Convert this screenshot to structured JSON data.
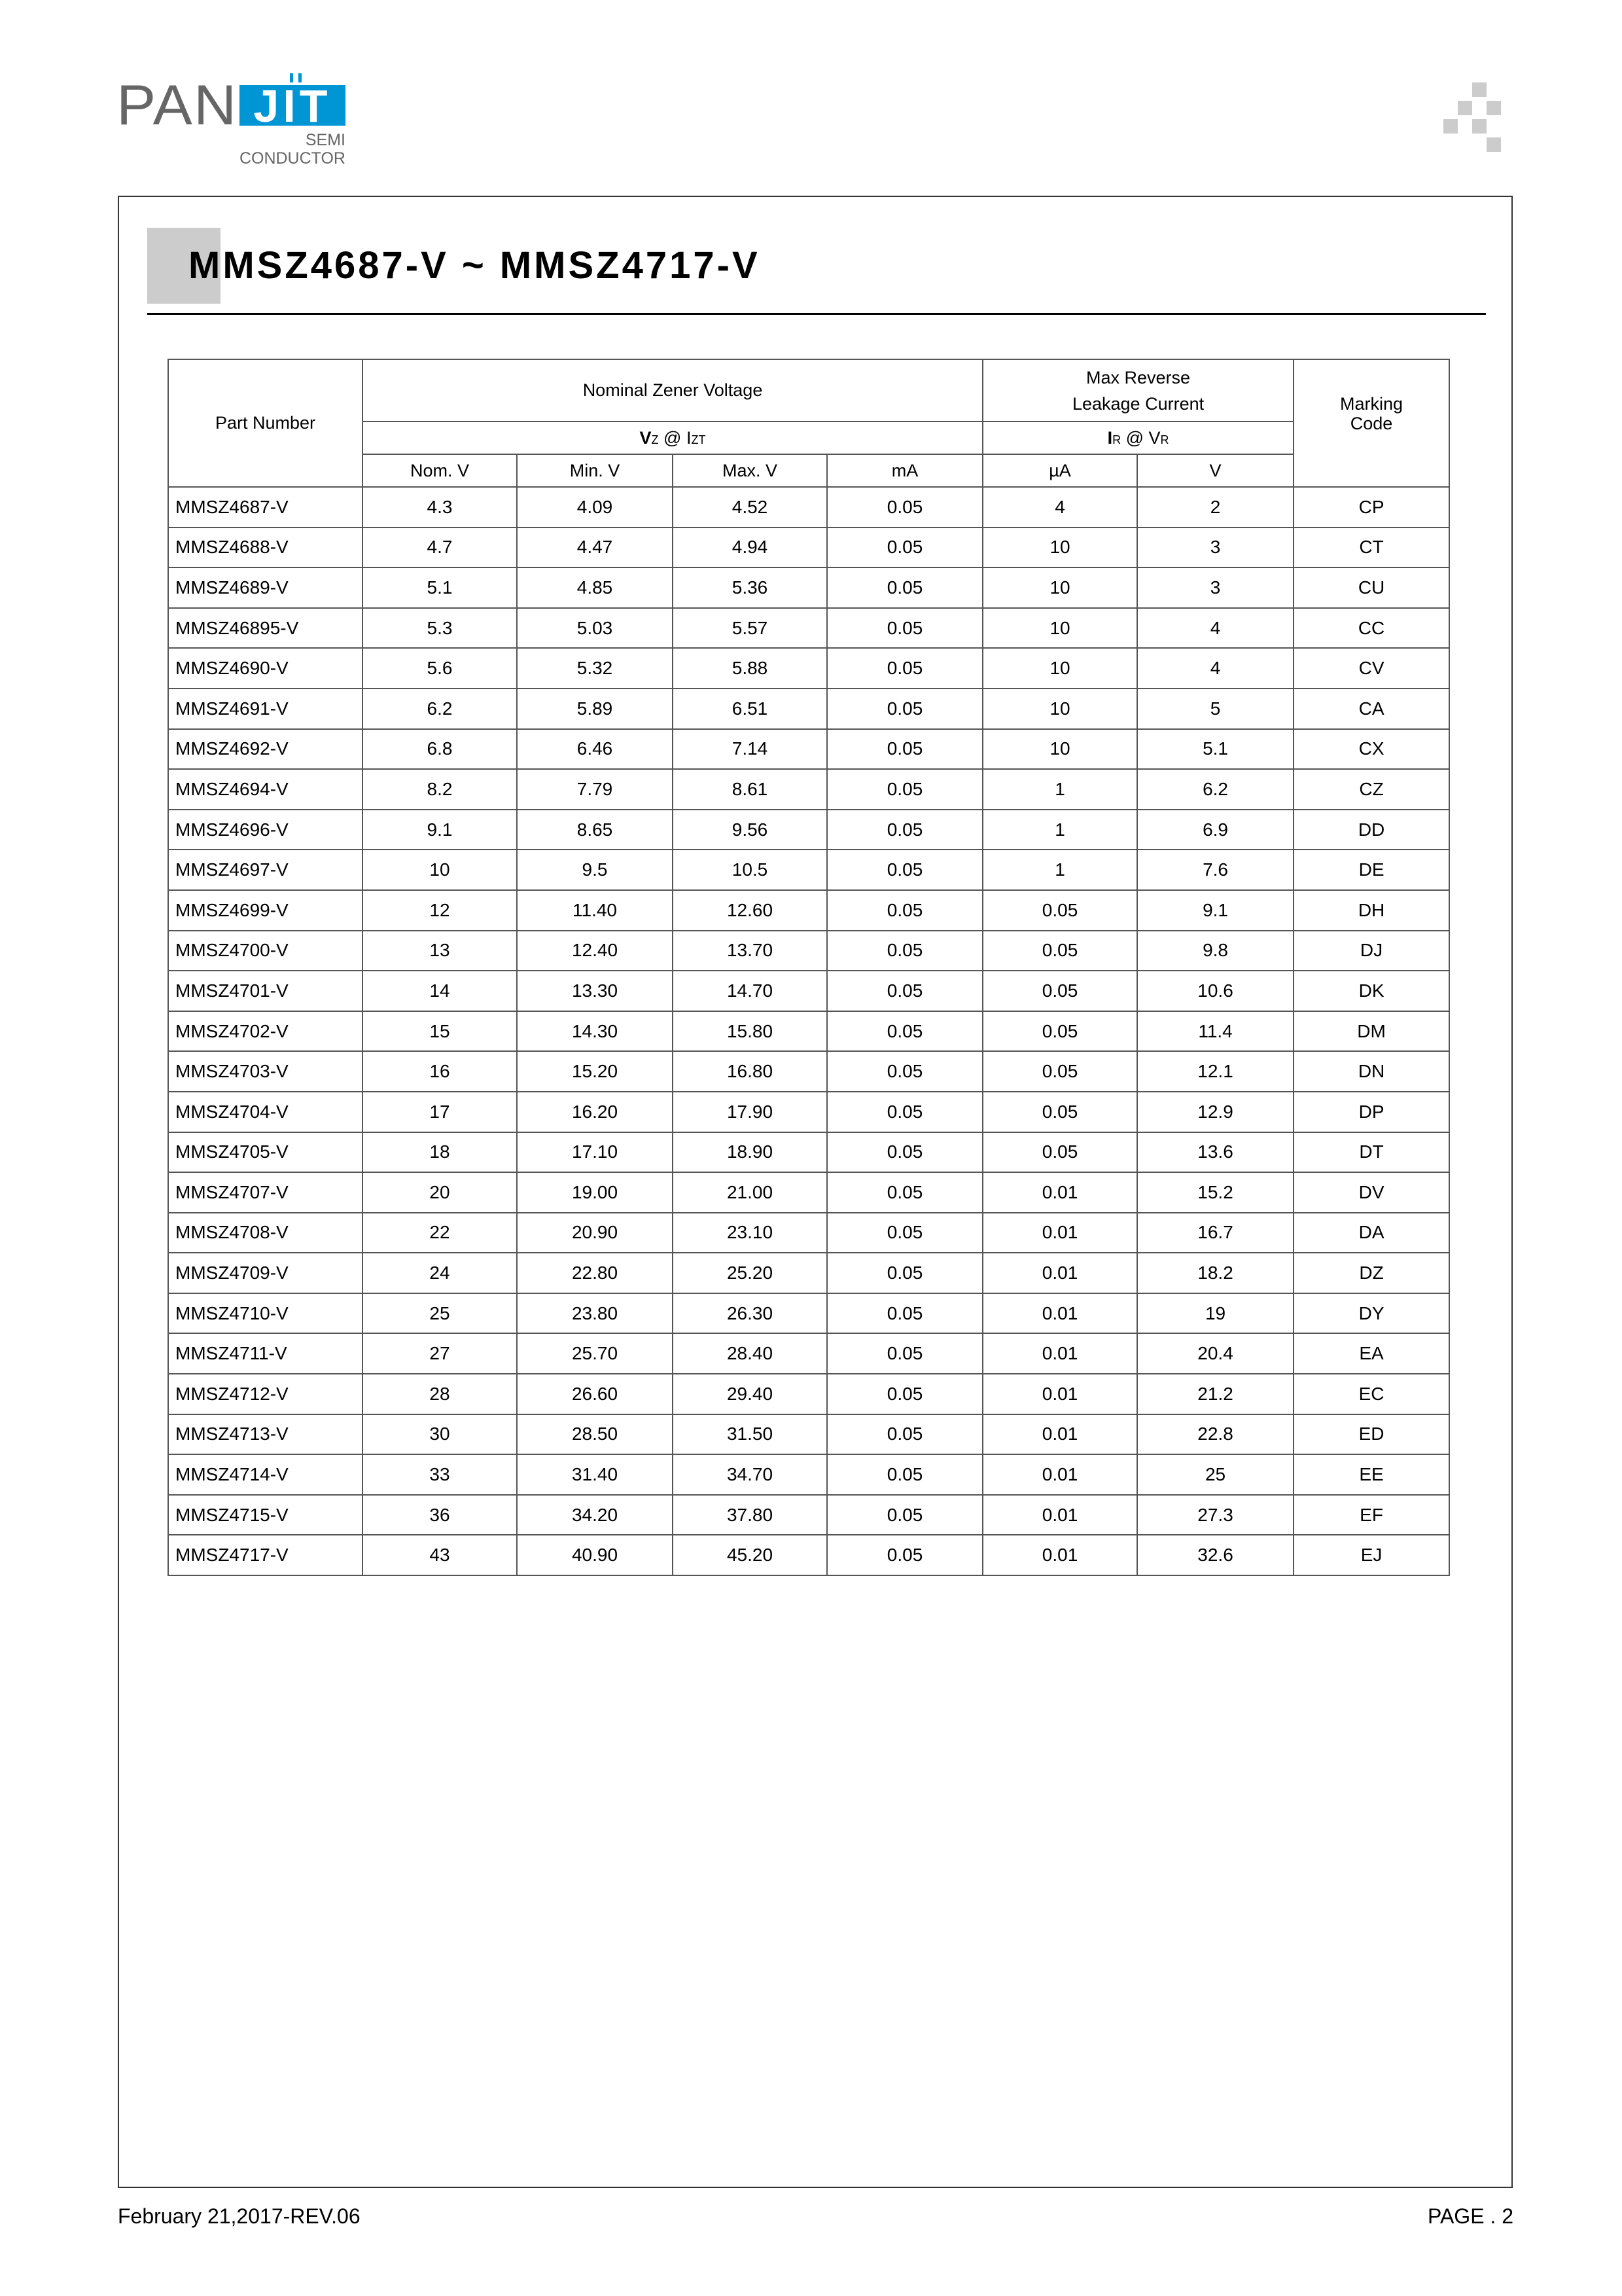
{
  "logo": {
    "pan": "PAN",
    "jit": "JIT",
    "semi": "SEMI",
    "conductor": "CONDUCTOR",
    "brand_color": "#0096d6"
  },
  "title": "MMSZ4687-V ~ MMSZ4717-V",
  "table": {
    "headers": {
      "part_number": "Part Number",
      "nominal_zener_voltage": "Nominal Zener Voltage",
      "max_reverse_line1": "Max Reverse",
      "max_reverse_line2": "Leakage Current",
      "marking_line1": "Marking",
      "marking_line2": "Code",
      "vz": "V",
      "vz_sub": "Z",
      "at1": " @ ",
      "izt": "I",
      "izt_sub": "ZT",
      "ir": "I",
      "ir_sub": "R",
      "at2": " @ ",
      "vr": "V",
      "vr_sub": "R",
      "units": [
        "Nom. V",
        "Min. V",
        "Max. V",
        "mA",
        "µA",
        "V"
      ]
    },
    "rows": [
      [
        "MMSZ4687-V",
        "4.3",
        "4.09",
        "4.52",
        "0.05",
        "4",
        "2",
        "CP"
      ],
      [
        "MMSZ4688-V",
        "4.7",
        "4.47",
        "4.94",
        "0.05",
        "10",
        "3",
        "CT"
      ],
      [
        "MMSZ4689-V",
        "5.1",
        "4.85",
        "5.36",
        "0.05",
        "10",
        "3",
        "CU"
      ],
      [
        "MMSZ46895-V",
        "5.3",
        "5.03",
        "5.57",
        "0.05",
        "10",
        "4",
        "CC"
      ],
      [
        "MMSZ4690-V",
        "5.6",
        "5.32",
        "5.88",
        "0.05",
        "10",
        "4",
        "CV"
      ],
      [
        "MMSZ4691-V",
        "6.2",
        "5.89",
        "6.51",
        "0.05",
        "10",
        "5",
        "CA"
      ],
      [
        "MMSZ4692-V",
        "6.8",
        "6.46",
        "7.14",
        "0.05",
        "10",
        "5.1",
        "CX"
      ],
      [
        "MMSZ4694-V",
        "8.2",
        "7.79",
        "8.61",
        "0.05",
        "1",
        "6.2",
        "CZ"
      ],
      [
        "MMSZ4696-V",
        "9.1",
        "8.65",
        "9.56",
        "0.05",
        "1",
        "6.9",
        "DD"
      ],
      [
        "MMSZ4697-V",
        "10",
        "9.5",
        "10.5",
        "0.05",
        "1",
        "7.6",
        "DE"
      ],
      [
        "MMSZ4699-V",
        "12",
        "11.40",
        "12.60",
        "0.05",
        "0.05",
        "9.1",
        "DH"
      ],
      [
        "MMSZ4700-V",
        "13",
        "12.40",
        "13.70",
        "0.05",
        "0.05",
        "9.8",
        "DJ"
      ],
      [
        "MMSZ4701-V",
        "14",
        "13.30",
        "14.70",
        "0.05",
        "0.05",
        "10.6",
        "DK"
      ],
      [
        "MMSZ4702-V",
        "15",
        "14.30",
        "15.80",
        "0.05",
        "0.05",
        "11.4",
        "DM"
      ],
      [
        "MMSZ4703-V",
        "16",
        "15.20",
        "16.80",
        "0.05",
        "0.05",
        "12.1",
        "DN"
      ],
      [
        "MMSZ4704-V",
        "17",
        "16.20",
        "17.90",
        "0.05",
        "0.05",
        "12.9",
        "DP"
      ],
      [
        "MMSZ4705-V",
        "18",
        "17.10",
        "18.90",
        "0.05",
        "0.05",
        "13.6",
        "DT"
      ],
      [
        "MMSZ4707-V",
        "20",
        "19.00",
        "21.00",
        "0.05",
        "0.01",
        "15.2",
        "DV"
      ],
      [
        "MMSZ4708-V",
        "22",
        "20.90",
        "23.10",
        "0.05",
        "0.01",
        "16.7",
        "DA"
      ],
      [
        "MMSZ4709-V",
        "24",
        "22.80",
        "25.20",
        "0.05",
        "0.01",
        "18.2",
        "DZ"
      ],
      [
        "MMSZ4710-V",
        "25",
        "23.80",
        "26.30",
        "0.05",
        "0.01",
        "19",
        "DY"
      ],
      [
        "MMSZ4711-V",
        "27",
        "25.70",
        "28.40",
        "0.05",
        "0.01",
        "20.4",
        "EA"
      ],
      [
        "MMSZ4712-V",
        "28",
        "26.60",
        "29.40",
        "0.05",
        "0.01",
        "21.2",
        "EC"
      ],
      [
        "MMSZ4713-V",
        "30",
        "28.50",
        "31.50",
        "0.05",
        "0.01",
        "22.8",
        "ED"
      ],
      [
        "MMSZ4714-V",
        "33",
        "31.40",
        "34.70",
        "0.05",
        "0.01",
        "25",
        "EE"
      ],
      [
        "MMSZ4715-V",
        "36",
        "34.20",
        "37.80",
        "0.05",
        "0.01",
        "27.3",
        "EF"
      ],
      [
        "MMSZ4717-V",
        "43",
        "40.90",
        "45.20",
        "0.05",
        "0.01",
        "32.6",
        "EJ"
      ]
    ]
  },
  "footer": {
    "date": "February 21,2017-REV.06",
    "page": "PAGE . 2"
  }
}
